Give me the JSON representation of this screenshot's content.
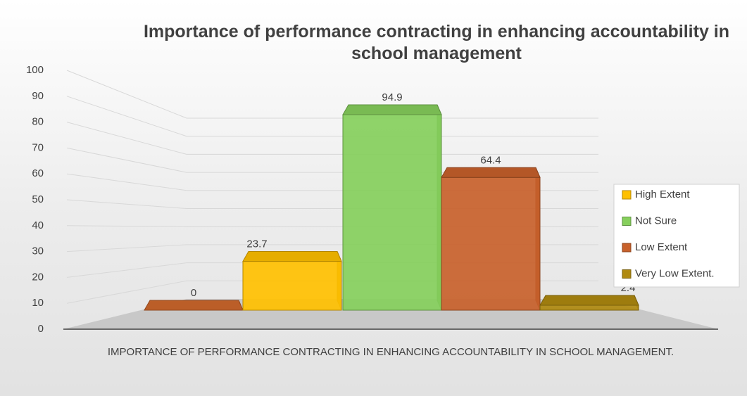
{
  "chart_data": {
    "type": "bar3d",
    "title": "Importance of performance contracting in enhancing accountability in school management",
    "categories": [
      "IMPORTANCE OF PERFORMANCE CONTRACTING IN ENHANCING ACCOUNTABILITY IN SCHOOL MANAGEMENT."
    ],
    "series": [
      {
        "name": null,
        "color": "#d0682c",
        "values": [
          0
        ]
      },
      {
        "name": "High Extent",
        "color": "#ffc000",
        "values": [
          23.7
        ]
      },
      {
        "name": "Not Sure",
        "color": "#86cf5c",
        "values": [
          94.9
        ]
      },
      {
        "name": "Low Extent",
        "color": "#c8612b",
        "values": [
          64.4
        ]
      },
      {
        "name": "Very Low Extent.",
        "color": "#b08a10",
        "values": [
          2.4
        ]
      }
    ],
    "ylim": [
      0,
      100
    ],
    "yticks": [
      0,
      10,
      20,
      30,
      40,
      50,
      60,
      70,
      80,
      90,
      100
    ],
    "grid": true,
    "legend": "right"
  }
}
